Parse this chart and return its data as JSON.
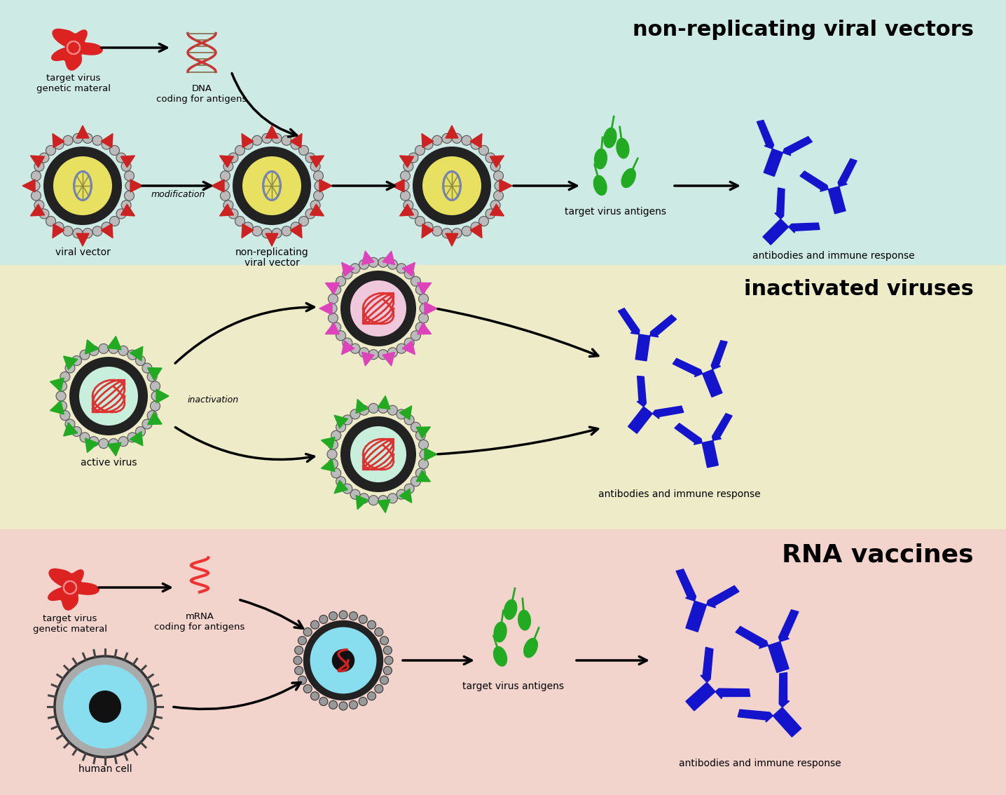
{
  "panel1_bg": "#ceeae4",
  "panel2_bg": "#eeecc8",
  "panel3_bg": "#f2d4cc",
  "panel1_title": "non-replicating viral vectors",
  "panel2_title": "inactivated viruses",
  "panel3_title": "RNA vaccines",
  "blue_ab": "#1414cc",
  "green_ag": "#22aa22",
  "red_spike": "#cc2222",
  "pink_spike": "#dd44bb",
  "yellow_core": "#e8e060",
  "cyan_core": "#88ddee",
  "gray_capsid": "#bbbbbb",
  "dark_ring": "#222222",
  "red_interior": "#dd3333",
  "panel1_border": 378,
  "panel2_border": 755
}
